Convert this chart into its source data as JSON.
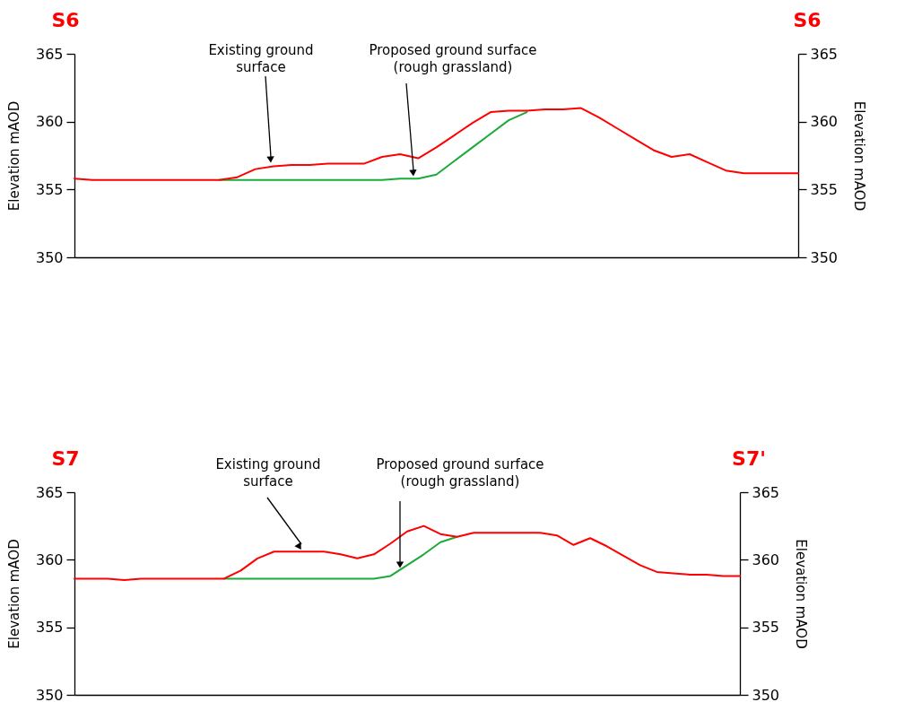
{
  "chart_data": [
    {
      "type": "line",
      "title": "S6",
      "subtitle": "S6",
      "ylabel": "Elevation mAOD",
      "y2label": "Elevation mAOD",
      "ylim": [
        350,
        365
      ],
      "yticks": [
        350,
        355,
        360,
        365
      ],
      "y2lim": [
        350,
        365
      ],
      "y2ticks": [
        350,
        355,
        360,
        365
      ],
      "categories": [
        null,
        null,
        null,
        null,
        null,
        null,
        null,
        null,
        null,
        null,
        null,
        null,
        null,
        null,
        null,
        null,
        null,
        null,
        null,
        null,
        null,
        null,
        null,
        null,
        null,
        null,
        null,
        null,
        null,
        null,
        null,
        null,
        null,
        null,
        null,
        null,
        null,
        null,
        null,
        null,
        null
      ],
      "annotations": [
        "Existing ground\nsurface",
        "Proposed ground surface\n(rough grassland)"
      ],
      "series": [
        {
          "color": "#1aaa3a",
          "values": [
            null,
            null,
            null,
            null,
            null,
            null,
            null,
            null,
            355.7,
            355.7,
            355.7,
            355.7,
            355.7,
            355.7,
            355.7,
            355.7,
            355.7,
            355.7,
            355.8,
            355.8,
            356.1,
            357.1,
            358.1,
            359.1,
            360.1,
            360.7,
            null,
            null,
            null,
            null,
            null,
            null,
            null,
            null,
            null,
            null,
            null,
            null,
            null,
            null,
            null
          ]
        },
        {
          "color": "#ff0000",
          "values": [
            355.8,
            355.7,
            355.7,
            355.7,
            355.7,
            355.7,
            355.7,
            355.7,
            355.7,
            355.9,
            356.5,
            356.7,
            356.8,
            356.8,
            356.9,
            356.9,
            356.9,
            357.4,
            357.6,
            357.3,
            358.1,
            359.0,
            359.9,
            360.7,
            360.8,
            360.8,
            360.9,
            360.9,
            361.0,
            360.3,
            359.5,
            358.7,
            357.9,
            357.4,
            357.6,
            357.0,
            356.4,
            356.2,
            356.2,
            356.2,
            356.2
          ]
        }
      ]
    },
    {
      "type": "line",
      "title": "S7",
      "subtitle": "S7'",
      "ylabel": "Elevation mAOD",
      "y2label": "Elevation mAOD",
      "ylim": [
        350,
        365
      ],
      "yticks": [
        350,
        355,
        360,
        365
      ],
      "y2lim": [
        350,
        365
      ],
      "y2ticks": [
        350,
        355,
        360,
        365
      ],
      "categories": [
        null,
        null,
        null,
        null,
        null,
        null,
        null,
        null,
        null,
        null,
        null,
        null,
        null,
        null,
        null,
        null,
        null,
        null,
        null,
        null,
        null,
        null,
        null,
        null,
        null,
        null,
        null,
        null,
        null,
        null,
        null,
        null,
        null,
        null,
        null,
        null,
        null,
        null,
        null,
        null,
        null
      ],
      "annotations": [
        "Existing ground\nsurface",
        "Proposed ground surface\n(rough grassland)"
      ],
      "series": [
        {
          "color": "#1aaa3a",
          "values": [
            null,
            null,
            null,
            null,
            null,
            null,
            null,
            null,
            null,
            358.6,
            358.6,
            358.6,
            358.6,
            358.6,
            358.6,
            358.6,
            358.6,
            358.6,
            358.6,
            358.8,
            359.6,
            360.4,
            361.3,
            361.7,
            null,
            null,
            null,
            null,
            null,
            null,
            null,
            null,
            null,
            null,
            null,
            null,
            null,
            null,
            null,
            null,
            null
          ]
        },
        {
          "color": "#ff0000",
          "values": [
            358.6,
            358.6,
            358.6,
            358.5,
            358.6,
            358.6,
            358.6,
            358.6,
            358.6,
            358.6,
            359.2,
            360.1,
            360.6,
            360.6,
            360.6,
            360.6,
            360.4,
            360.1,
            360.4,
            361.2,
            362.1,
            362.5,
            361.9,
            361.7,
            362.0,
            362.0,
            362.0,
            362.0,
            362.0,
            361.8,
            361.1,
            361.6,
            361.0,
            360.3,
            359.6,
            359.1,
            359.0,
            358.9,
            358.9,
            358.8,
            358.8
          ]
        }
      ]
    }
  ]
}
